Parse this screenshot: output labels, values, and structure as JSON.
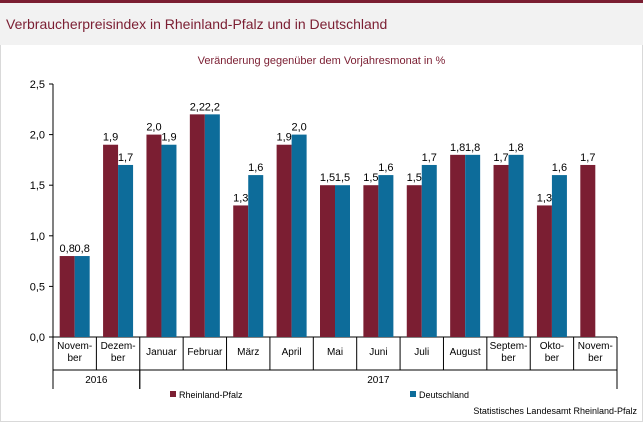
{
  "title": "Verbraucherpreisindex in Rheinland-Pfalz und in Deutschland",
  "subtitle": "Veränderung gegenüber dem Vorjahresmonat in %",
  "source": "Statistisches Landesamt Rheinland-Pfalz",
  "chart_data": {
    "type": "bar",
    "categories": [
      [
        "Novem-",
        "ber"
      ],
      [
        "Dezem-",
        "ber"
      ],
      [
        "Januar"
      ],
      [
        "Februar"
      ],
      [
        "März"
      ],
      [
        "April"
      ],
      [
        "Mai"
      ],
      [
        "Juni"
      ],
      [
        "Juli"
      ],
      [
        "August"
      ],
      [
        "Septem-",
        "ber"
      ],
      [
        "Okto-",
        "ber"
      ],
      [
        "Novem-",
        "ber"
      ]
    ],
    "year_groups": [
      {
        "label": "2016",
        "start": 0,
        "end": 1
      },
      {
        "label": "2017",
        "start": 2,
        "end": 12
      }
    ],
    "series": [
      {
        "name": "Rheinland-Pfalz",
        "color": "#7b1e32",
        "values": [
          0.8,
          1.9,
          2.0,
          2.2,
          1.3,
          1.9,
          1.5,
          1.5,
          1.5,
          1.8,
          1.7,
          1.3,
          1.7
        ],
        "labels": [
          "0,8",
          "1,9",
          "2,0",
          "2,2",
          "1,3",
          "1,9",
          "1,5",
          "1,5",
          "1,5",
          "1,8",
          "1,7",
          "1,3",
          "1,7"
        ]
      },
      {
        "name": "Deutschland",
        "color": "#0d6c9a",
        "values": [
          0.8,
          1.7,
          1.9,
          2.2,
          1.6,
          2.0,
          1.5,
          1.6,
          1.7,
          1.8,
          1.8,
          1.6,
          null
        ],
        "labels": [
          "0,8",
          "1,7",
          "1,9",
          "2,2",
          "1,6",
          "2,0",
          "1,5",
          "1,6",
          "1,7",
          "1,8",
          "1,8",
          "1,6",
          ""
        ]
      }
    ],
    "ylim": [
      0,
      2.5
    ],
    "yticks": [
      0,
      0.5,
      1.0,
      1.5,
      2.0,
      2.5
    ],
    "ytick_labels": [
      "0,0",
      "0,5",
      "1,0",
      "1,5",
      "2,0",
      "2,5"
    ],
    "grid": false,
    "legend": "bottom"
  }
}
